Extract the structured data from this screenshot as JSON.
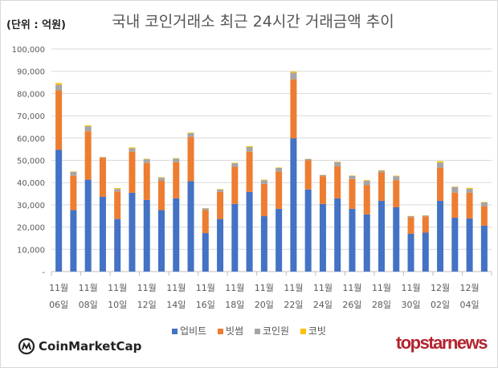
{
  "unit_label": "(단위 : 억원)",
  "chart_data": {
    "type": "bar",
    "stacked": true,
    "title": "국내 코인거래소 최근 24시간 거래금액 추이",
    "ylim": [
      0,
      100000
    ],
    "yticks": [
      "-",
      "10,000",
      "20,000",
      "30,000",
      "40,000",
      "50,000",
      "60,000",
      "70,000",
      "80,000",
      "90,000",
      "100,000"
    ],
    "grid": true,
    "legend_position": "bottom",
    "categories": [
      "11월 06일",
      "11월 07일",
      "11월 08일",
      "11월 09일",
      "11월 10일",
      "11월 11일",
      "11월 12일",
      "11월 13일",
      "11월 14일",
      "11월 15일",
      "11월 16일",
      "11월 17일",
      "11월 18일",
      "11월 19일",
      "11월 20일",
      "11월 21일",
      "11월 22일",
      "11월 23일",
      "11월 24일",
      "11월 25일",
      "11월 26일",
      "11월 27일",
      "11월 28일",
      "11월 29일",
      "11월 30일",
      "12월 01일",
      "12월 02일",
      "12월 03일",
      "12월 04일",
      "12월 05일"
    ],
    "tick_labels": [
      [
        "11월",
        "06일"
      ],
      [
        "11월",
        "08일"
      ],
      [
        "11월",
        "10일"
      ],
      [
        "11월",
        "12일"
      ],
      [
        "11월",
        "14일"
      ],
      [
        "11월",
        "16일"
      ],
      [
        "11월",
        "18일"
      ],
      [
        "11월",
        "20일"
      ],
      [
        "11월",
        "22일"
      ],
      [
        "11월",
        "24일"
      ],
      [
        "11월",
        "26일"
      ],
      [
        "11월",
        "28일"
      ],
      [
        "11월",
        "30일"
      ],
      [
        "12월",
        "02일"
      ],
      [
        "12월",
        "04일"
      ]
    ],
    "series": [
      {
        "name": "업비트",
        "color": "#4472c4",
        "values": [
          54700,
          27600,
          41300,
          33600,
          23600,
          35400,
          32200,
          27600,
          32900,
          40600,
          17300,
          23600,
          30400,
          35800,
          24900,
          28200,
          59900,
          36900,
          30400,
          32900,
          28200,
          25700,
          31800,
          28900,
          17000,
          17500,
          31800,
          24200,
          23900,
          20600
        ]
      },
      {
        "name": "빗썸",
        "color": "#ed7d31",
        "values": [
          26700,
          15500,
          21800,
          17500,
          12400,
          18500,
          16600,
          13200,
          16300,
          19900,
          10300,
          12200,
          16700,
          18100,
          14500,
          16700,
          26500,
          13100,
          12500,
          14400,
          13400,
          13100,
          12800,
          12200,
          7500,
          7300,
          14900,
          11300,
          11500,
          8800
        ]
      },
      {
        "name": "코인원",
        "color": "#a5a5a5",
        "values": [
          2600,
          1700,
          2200,
          300,
          1100,
          1500,
          1700,
          1400,
          1600,
          1700,
          800,
          1100,
          1600,
          2100,
          1700,
          1700,
          3000,
          600,
          500,
          1900,
          1400,
          2000,
          800,
          1800,
          400,
          400,
          2300,
          2500,
          1800,
          1700
        ]
      },
      {
        "name": "코빗",
        "color": "#ffc000",
        "values": [
          700,
          200,
          400,
          100,
          400,
          400,
          200,
          200,
          200,
          300,
          100,
          200,
          200,
          400,
          200,
          200,
          500,
          100,
          100,
          200,
          200,
          300,
          200,
          200,
          100,
          100,
          600,
          200,
          400,
          200
        ]
      }
    ]
  },
  "branding": {
    "left": "CoinMarketCap",
    "right": "topstarnews"
  }
}
